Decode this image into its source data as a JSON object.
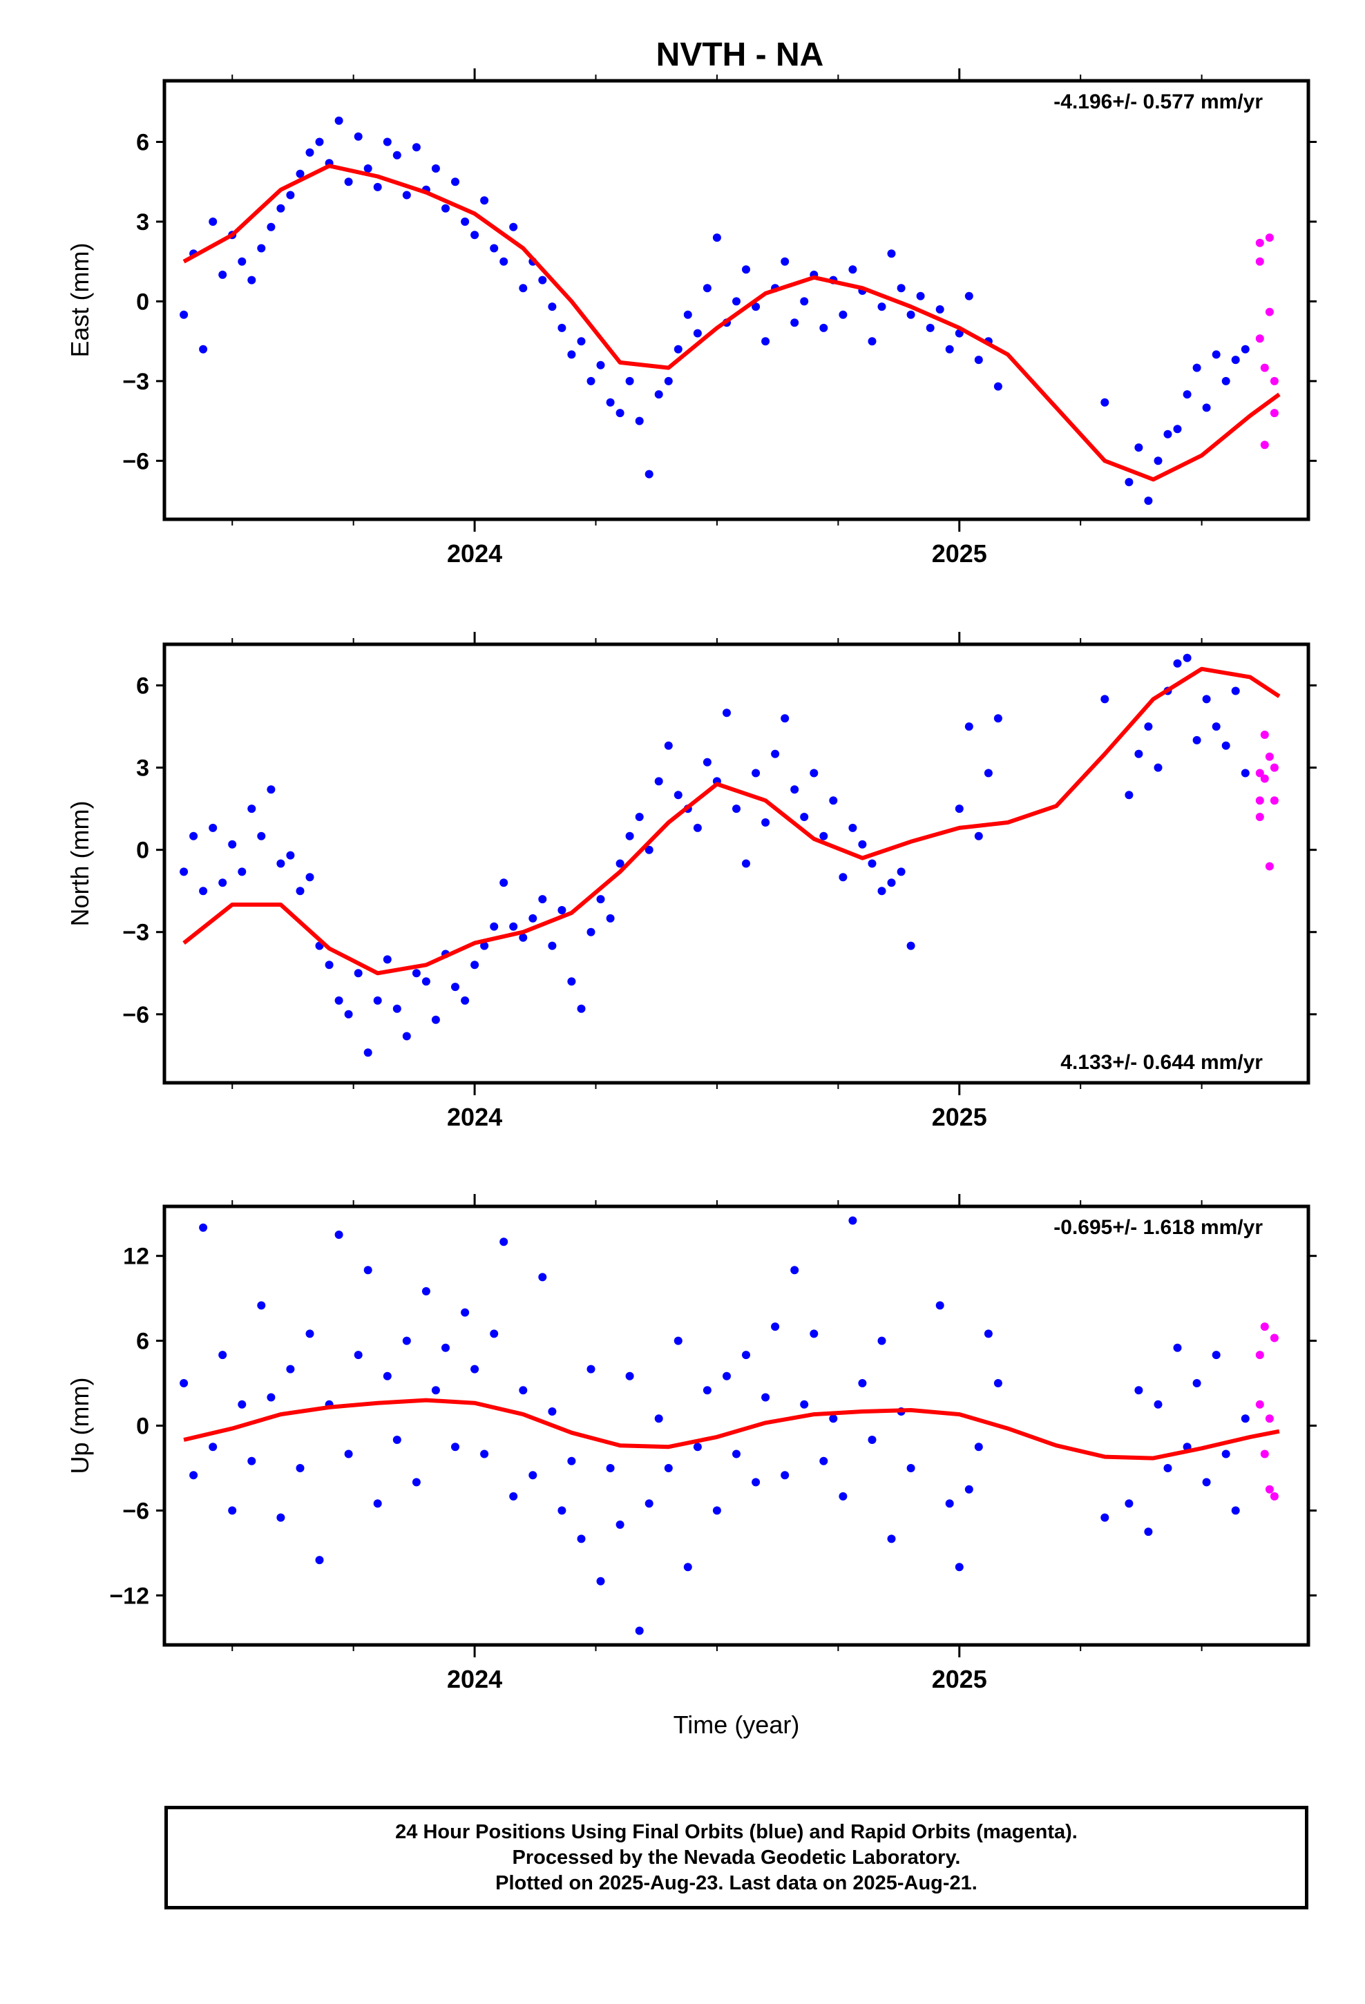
{
  "page": {
    "title": "NVTH - NA",
    "footer": [
      "24 Hour Positions Using Final Orbits (blue) and Rapid Orbits (magenta).",
      "Processed by the Nevada Geodetic Laboratory.",
      "Plotted on 2025-Aug-23. Last data on 2025-Aug-21."
    ]
  },
  "colors": {
    "final": "#0000ff",
    "rapid": "#ff00ff",
    "model": "#ff0000",
    "axes": "#000000"
  },
  "chart_data": [
    {
      "type": "scatter",
      "ylabel": "East (mm)",
      "rate_label": "-4.196+/- 0.577 mm/yr",
      "rate_position": "top-right",
      "xlim": [
        2023.36,
        2025.72
      ],
      "ylim": [
        -8.2,
        8.3
      ],
      "yticks": [
        -6,
        -3,
        0,
        3,
        6
      ],
      "xticks": [
        2024,
        2025
      ],
      "xticklabels": [
        "2024",
        "2025"
      ],
      "grid": false,
      "series": [
        {
          "style": "points",
          "color": "#0000ff",
          "x": [
            2023.4,
            2023.42,
            2023.44,
            2023.46,
            2023.48,
            2023.5,
            2023.52,
            2023.54,
            2023.56,
            2023.58,
            2023.6,
            2023.62,
            2023.64,
            2023.66,
            2023.68,
            2023.7,
            2023.72,
            2023.74,
            2023.76,
            2023.78,
            2023.8,
            2023.82,
            2023.84,
            2023.86,
            2023.88,
            2023.9,
            2023.92,
            2023.94,
            2023.96,
            2023.98,
            2024.0,
            2024.02,
            2024.04,
            2024.06,
            2024.08,
            2024.1,
            2024.12,
            2024.14,
            2024.16,
            2024.18,
            2024.2,
            2024.22,
            2024.24,
            2024.26,
            2024.28,
            2024.3,
            2024.32,
            2024.34,
            2024.36,
            2024.38,
            2024.4,
            2024.42,
            2024.44,
            2024.46,
            2024.48,
            2024.5,
            2024.52,
            2024.54,
            2024.56,
            2024.58,
            2024.6,
            2024.62,
            2024.64,
            2024.66,
            2024.68,
            2024.7,
            2024.72,
            2024.74,
            2024.76,
            2024.78,
            2024.8,
            2024.82,
            2024.84,
            2024.86,
            2024.88,
            2024.9,
            2024.92,
            2024.94,
            2024.96,
            2024.98,
            2025.0,
            2025.02,
            2025.04,
            2025.06,
            2025.08,
            2025.3,
            2025.35,
            2025.37,
            2025.39,
            2025.41,
            2025.43,
            2025.45,
            2025.47,
            2025.49,
            2025.51,
            2025.53,
            2025.55,
            2025.57,
            2025.59
          ],
          "y": [
            -0.5,
            1.8,
            -1.8,
            3.0,
            1.0,
            2.5,
            1.5,
            0.8,
            2.0,
            2.8,
            3.5,
            4.0,
            4.8,
            5.6,
            6.0,
            5.2,
            6.8,
            4.5,
            6.2,
            5.0,
            4.3,
            6.0,
            5.5,
            4.0,
            5.8,
            4.2,
            5.0,
            3.5,
            4.5,
            3.0,
            2.5,
            3.8,
            2.0,
            1.5,
            2.8,
            0.5,
            1.5,
            0.8,
            -0.2,
            -1.0,
            -2.0,
            -1.5,
            -3.0,
            -2.4,
            -3.8,
            -4.2,
            -3.0,
            -4.5,
            -6.5,
            -3.5,
            -3.0,
            -1.8,
            -0.5,
            -1.2,
            0.5,
            2.4,
            -0.8,
            0.0,
            1.2,
            -0.2,
            -1.5,
            0.5,
            1.5,
            -0.8,
            0.0,
            1.0,
            -1.0,
            0.8,
            -0.5,
            1.2,
            0.4,
            -1.5,
            -0.2,
            1.8,
            0.5,
            -0.5,
            0.2,
            -1.0,
            -0.3,
            -1.8,
            -1.2,
            0.2,
            -2.2,
            -1.5,
            -3.2,
            -3.8,
            -6.8,
            -5.5,
            -7.5,
            -6.0,
            -5.0,
            -4.8,
            -3.5,
            -2.5,
            -4.0,
            -2.0,
            -3.0,
            -2.2,
            -1.8
          ]
        },
        {
          "style": "points",
          "color": "#ff00ff",
          "x": [
            2025.62,
            2025.62,
            2025.62,
            2025.63,
            2025.63,
            2025.64,
            2025.64,
            2025.65,
            2025.65
          ],
          "y": [
            2.2,
            1.5,
            -1.4,
            -2.5,
            -5.4,
            2.4,
            -0.4,
            -3.0,
            -4.2
          ]
        },
        {
          "style": "line",
          "color": "#ff0000",
          "x": [
            2023.4,
            2023.5,
            2023.6,
            2023.7,
            2023.8,
            2023.9,
            2024.0,
            2024.1,
            2024.2,
            2024.3,
            2024.4,
            2024.5,
            2024.6,
            2024.7,
            2024.8,
            2024.9,
            2025.0,
            2025.1,
            2025.2,
            2025.3,
            2025.4,
            2025.5,
            2025.6,
            2025.66
          ],
          "y": [
            1.5,
            2.5,
            4.2,
            5.1,
            4.7,
            4.1,
            3.3,
            2.0,
            0.0,
            -2.3,
            -2.5,
            -1.0,
            0.3,
            0.9,
            0.5,
            -0.2,
            -1.0,
            -2.0,
            -4.0,
            -6.0,
            -6.7,
            -5.8,
            -4.3,
            -3.5
          ]
        }
      ]
    },
    {
      "type": "scatter",
      "ylabel": "North (mm)",
      "rate_label": "4.133+/- 0.644 mm/yr",
      "rate_position": "bottom-right",
      "xlim": [
        2023.36,
        2025.72
      ],
      "ylim": [
        -8.5,
        7.5
      ],
      "yticks": [
        -6,
        -3,
        0,
        3,
        6
      ],
      "xticks": [
        2024,
        2025
      ],
      "xticklabels": [
        "2024",
        "2025"
      ],
      "grid": false,
      "series": [
        {
          "style": "points",
          "color": "#0000ff",
          "x": [
            2023.4,
            2023.42,
            2023.44,
            2023.46,
            2023.48,
            2023.5,
            2023.52,
            2023.54,
            2023.56,
            2023.58,
            2023.6,
            2023.62,
            2023.64,
            2023.66,
            2023.68,
            2023.7,
            2023.72,
            2023.74,
            2023.76,
            2023.78,
            2023.8,
            2023.82,
            2023.84,
            2023.86,
            2023.88,
            2023.9,
            2023.92,
            2023.94,
            2023.96,
            2023.98,
            2024.0,
            2024.02,
            2024.04,
            2024.06,
            2024.08,
            2024.1,
            2024.12,
            2024.14,
            2024.16,
            2024.18,
            2024.2,
            2024.22,
            2024.24,
            2024.26,
            2024.28,
            2024.3,
            2024.32,
            2024.34,
            2024.36,
            2024.38,
            2024.4,
            2024.42,
            2024.44,
            2024.46,
            2024.48,
            2024.5,
            2024.52,
            2024.54,
            2024.56,
            2024.58,
            2024.6,
            2024.62,
            2024.64,
            2024.66,
            2024.68,
            2024.7,
            2024.72,
            2024.74,
            2024.76,
            2024.78,
            2024.8,
            2024.82,
            2024.84,
            2024.86,
            2024.88,
            2024.9,
            2025.0,
            2025.02,
            2025.04,
            2025.06,
            2025.08,
            2025.3,
            2025.35,
            2025.37,
            2025.39,
            2025.41,
            2025.43,
            2025.45,
            2025.47,
            2025.49,
            2025.51,
            2025.53,
            2025.55,
            2025.57,
            2025.59
          ],
          "y": [
            -0.8,
            0.5,
            -1.5,
            0.8,
            -1.2,
            0.2,
            -0.8,
            1.5,
            0.5,
            2.2,
            -0.5,
            -0.2,
            -1.5,
            -1.0,
            -3.5,
            -4.2,
            -5.5,
            -6.0,
            -4.5,
            -7.4,
            -5.5,
            -4.0,
            -5.8,
            -6.8,
            -4.5,
            -4.8,
            -6.2,
            -3.8,
            -5.0,
            -5.5,
            -4.2,
            -3.5,
            -2.8,
            -1.2,
            -2.8,
            -3.2,
            -2.5,
            -1.8,
            -3.5,
            -2.2,
            -4.8,
            -5.8,
            -3.0,
            -1.8,
            -2.5,
            -0.5,
            0.5,
            1.2,
            0.0,
            2.5,
            3.8,
            2.0,
            1.5,
            0.8,
            3.2,
            2.5,
            5.0,
            1.5,
            -0.5,
            2.8,
            1.0,
            3.5,
            4.8,
            2.2,
            1.2,
            2.8,
            0.5,
            1.8,
            -1.0,
            0.8,
            0.2,
            -0.5,
            -1.5,
            -1.2,
            -0.8,
            -3.5,
            1.5,
            4.5,
            0.5,
            2.8,
            4.8,
            5.5,
            2.0,
            3.5,
            4.5,
            3.0,
            5.8,
            6.8,
            7.0,
            4.0,
            5.5,
            4.5,
            3.8,
            5.8,
            2.8
          ]
        },
        {
          "style": "points",
          "color": "#ff00ff",
          "x": [
            2025.62,
            2025.62,
            2025.62,
            2025.63,
            2025.63,
            2025.64,
            2025.64,
            2025.65,
            2025.65
          ],
          "y": [
            2.8,
            1.8,
            1.2,
            2.6,
            4.2,
            3.4,
            -0.6,
            3.0,
            1.8
          ]
        },
        {
          "style": "line",
          "color": "#ff0000",
          "x": [
            2023.4,
            2023.5,
            2023.6,
            2023.7,
            2023.8,
            2023.9,
            2024.0,
            2024.1,
            2024.2,
            2024.3,
            2024.4,
            2024.5,
            2024.6,
            2024.7,
            2024.8,
            2024.9,
            2025.0,
            2025.1,
            2025.2,
            2025.3,
            2025.4,
            2025.5,
            2025.6,
            2025.66
          ],
          "y": [
            -3.4,
            -2.0,
            -2.0,
            -3.6,
            -4.5,
            -4.2,
            -3.4,
            -3.0,
            -2.3,
            -0.8,
            1.0,
            2.4,
            1.8,
            0.4,
            -0.3,
            0.3,
            0.8,
            1.0,
            1.6,
            3.5,
            5.5,
            6.6,
            6.3,
            5.6
          ]
        }
      ]
    },
    {
      "type": "scatter",
      "ylabel": "Up (mm)",
      "xlabel": "Time (year)",
      "rate_label": "-0.695+/- 1.618 mm/yr",
      "rate_position": "top-right",
      "xlim": [
        2023.36,
        2025.72
      ],
      "ylim": [
        -15.5,
        15.5
      ],
      "yticks": [
        -12,
        -6,
        0,
        6,
        12
      ],
      "yticklabels": [
        "−12",
        "−6",
        "0",
        "6",
        "12"
      ],
      "xticks": [
        2024,
        2025
      ],
      "xticklabels": [
        "2024",
        "2025"
      ],
      "grid": false,
      "series": [
        {
          "style": "points",
          "color": "#0000ff",
          "x": [
            2023.4,
            2023.42,
            2023.44,
            2023.46,
            2023.48,
            2023.5,
            2023.52,
            2023.54,
            2023.56,
            2023.58,
            2023.6,
            2023.62,
            2023.64,
            2023.66,
            2023.68,
            2023.7,
            2023.72,
            2023.74,
            2023.76,
            2023.78,
            2023.8,
            2023.82,
            2023.84,
            2023.86,
            2023.88,
            2023.9,
            2023.92,
            2023.94,
            2023.96,
            2023.98,
            2024.0,
            2024.02,
            2024.04,
            2024.06,
            2024.08,
            2024.1,
            2024.12,
            2024.14,
            2024.16,
            2024.18,
            2024.2,
            2024.22,
            2024.24,
            2024.26,
            2024.28,
            2024.3,
            2024.32,
            2024.34,
            2024.36,
            2024.38,
            2024.4,
            2024.42,
            2024.44,
            2024.46,
            2024.48,
            2024.5,
            2024.52,
            2024.54,
            2024.56,
            2024.58,
            2024.6,
            2024.62,
            2024.64,
            2024.66,
            2024.68,
            2024.7,
            2024.72,
            2024.74,
            2024.76,
            2024.78,
            2024.8,
            2024.82,
            2024.84,
            2024.86,
            2024.88,
            2024.9,
            2024.96,
            2024.98,
            2025.0,
            2025.02,
            2025.04,
            2025.06,
            2025.08,
            2025.3,
            2025.35,
            2025.37,
            2025.39,
            2025.41,
            2025.43,
            2025.45,
            2025.47,
            2025.49,
            2025.51,
            2025.53,
            2025.55,
            2025.57,
            2025.59
          ],
          "y": [
            3.0,
            -3.5,
            14.0,
            -1.5,
            5.0,
            -6.0,
            1.5,
            -2.5,
            8.5,
            2.0,
            -6.5,
            4.0,
            -3.0,
            6.5,
            -9.5,
            1.5,
            13.5,
            -2.0,
            5.0,
            11.0,
            -5.5,
            3.5,
            -1.0,
            6.0,
            -4.0,
            9.5,
            2.5,
            5.5,
            -1.5,
            8.0,
            4.0,
            -2.0,
            6.5,
            13.0,
            -5.0,
            2.5,
            -3.5,
            10.5,
            1.0,
            -6.0,
            -2.5,
            -8.0,
            4.0,
            -11.0,
            -3.0,
            -7.0,
            3.5,
            -14.5,
            -5.5,
            0.5,
            -3.0,
            6.0,
            -10.0,
            -1.5,
            2.5,
            -6.0,
            3.5,
            -2.0,
            5.0,
            -4.0,
            2.0,
            7.0,
            -3.5,
            11.0,
            1.5,
            6.5,
            -2.5,
            0.5,
            -5.0,
            14.5,
            3.0,
            -1.0,
            6.0,
            -8.0,
            1.0,
            -3.0,
            8.5,
            -5.5,
            -10.0,
            -4.5,
            -1.5,
            6.5,
            3.0,
            -6.5,
            -5.5,
            2.5,
            -7.5,
            1.5,
            -3.0,
            5.5,
            -1.5,
            3.0,
            -4.0,
            5.0,
            -2.0,
            -6.0,
            0.5
          ]
        },
        {
          "style": "points",
          "color": "#ff00ff",
          "x": [
            2025.62,
            2025.62,
            2025.63,
            2025.63,
            2025.64,
            2025.64,
            2025.65,
            2025.65
          ],
          "y": [
            5.0,
            1.5,
            7.0,
            -2.0,
            -4.5,
            0.5,
            6.2,
            -5.0
          ]
        },
        {
          "style": "line",
          "color": "#ff0000",
          "x": [
            2023.4,
            2023.5,
            2023.6,
            2023.7,
            2023.8,
            2023.9,
            2024.0,
            2024.1,
            2024.2,
            2024.3,
            2024.4,
            2024.5,
            2024.6,
            2024.7,
            2024.8,
            2024.9,
            2025.0,
            2025.1,
            2025.2,
            2025.3,
            2025.4,
            2025.5,
            2025.6,
            2025.66
          ],
          "y": [
            -1.0,
            -0.2,
            0.8,
            1.3,
            1.6,
            1.8,
            1.6,
            0.8,
            -0.5,
            -1.4,
            -1.5,
            -0.8,
            0.2,
            0.8,
            1.0,
            1.1,
            0.8,
            -0.2,
            -1.4,
            -2.2,
            -2.3,
            -1.6,
            -0.8,
            -0.4
          ]
        }
      ]
    }
  ]
}
